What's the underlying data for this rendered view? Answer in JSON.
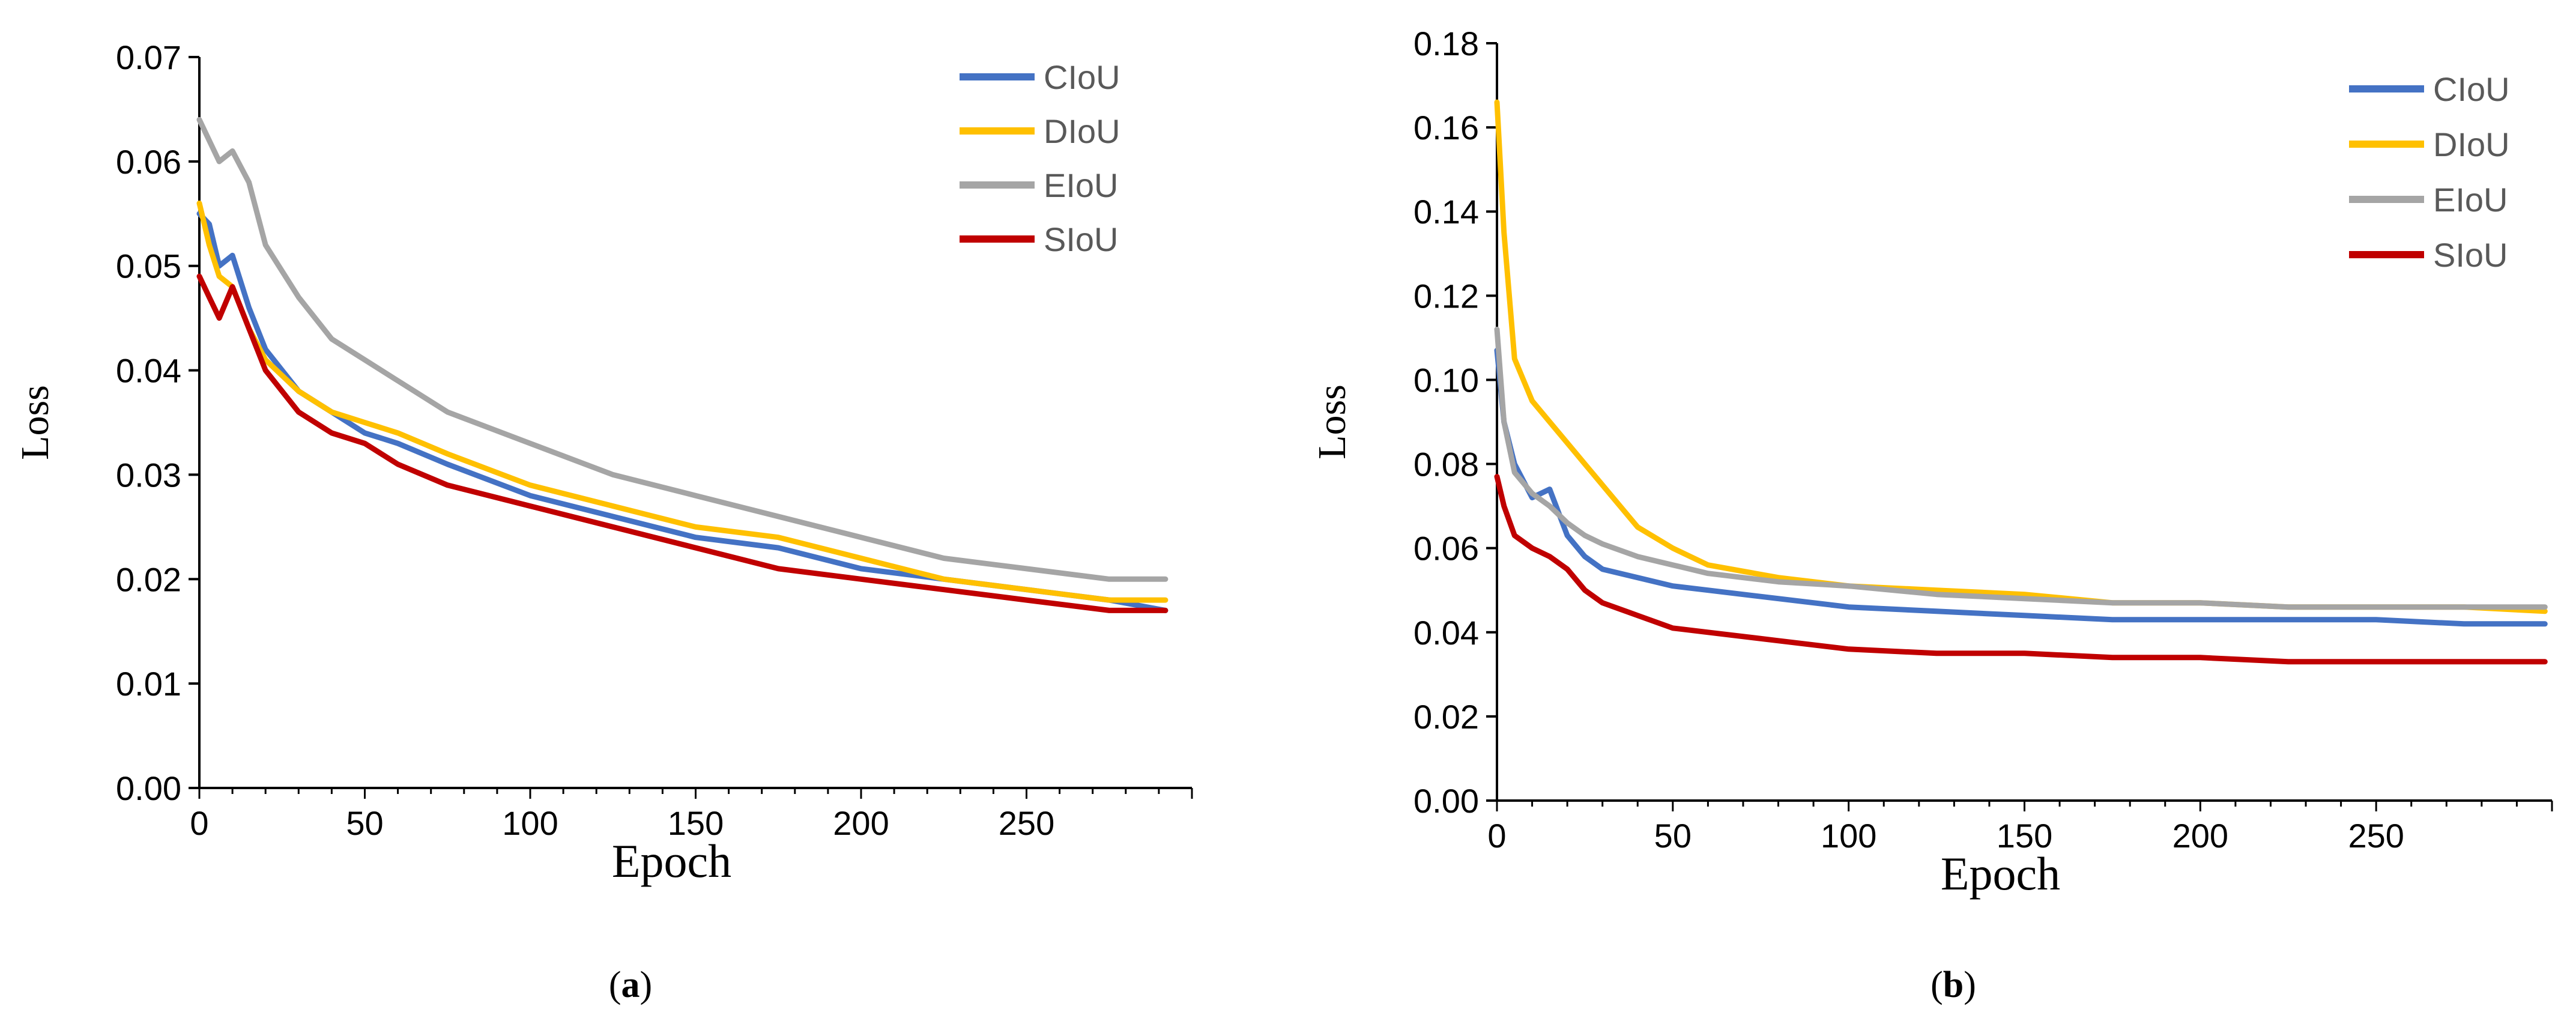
{
  "chart_data": [
    {
      "type": "line",
      "panel": "a",
      "caption": "a",
      "xlabel": "Epoch",
      "ylabel": "Loss",
      "xlim": [
        0,
        300
      ],
      "ylim": [
        0,
        0.07
      ],
      "xticks": [
        0,
        50,
        100,
        150,
        200,
        250
      ],
      "xtick_labels": [
        "0",
        "50",
        "100",
        "150",
        "200",
        "250"
      ],
      "yticks": [
        0,
        0.01,
        0.02,
        0.03,
        0.04,
        0.05,
        0.06,
        0.07
      ],
      "ytick_labels": [
        "0.00",
        "0.01",
        "0.02",
        "0.03",
        "0.04",
        "0.05",
        "0.06",
        "0.07"
      ],
      "legend_position": "top-right",
      "x": [
        0,
        3,
        6,
        10,
        15,
        20,
        30,
        40,
        50,
        60,
        75,
        100,
        125,
        150,
        175,
        200,
        225,
        250,
        275,
        292
      ],
      "series": [
        {
          "name": "CIoU",
          "color": "#4472C4",
          "values": [
            0.055,
            0.054,
            0.05,
            0.051,
            0.046,
            0.042,
            0.038,
            0.036,
            0.034,
            0.033,
            0.031,
            0.028,
            0.026,
            0.024,
            0.023,
            0.021,
            0.02,
            0.019,
            0.018,
            0.017
          ]
        },
        {
          "name": "DIoU",
          "color": "#FFC000",
          "values": [
            0.056,
            0.052,
            0.049,
            0.048,
            0.044,
            0.041,
            0.038,
            0.036,
            0.035,
            0.034,
            0.032,
            0.029,
            0.027,
            0.025,
            0.024,
            0.022,
            0.02,
            0.019,
            0.018,
            0.018
          ]
        },
        {
          "name": "EIoU",
          "color": "#A5A5A5",
          "values": [
            0.064,
            0.062,
            0.06,
            0.061,
            0.058,
            0.052,
            0.047,
            0.043,
            0.041,
            0.039,
            0.036,
            0.033,
            0.03,
            0.028,
            0.026,
            0.024,
            0.022,
            0.021,
            0.02,
            0.02
          ]
        },
        {
          "name": "SIoU",
          "color": "#C00000",
          "values": [
            0.049,
            0.047,
            0.045,
            0.048,
            0.044,
            0.04,
            0.036,
            0.034,
            0.033,
            0.031,
            0.029,
            0.027,
            0.025,
            0.023,
            0.021,
            0.02,
            0.019,
            0.018,
            0.017,
            0.017
          ]
        }
      ]
    },
    {
      "type": "line",
      "panel": "b",
      "caption": "b",
      "xlabel": "Epoch",
      "ylabel": "Loss",
      "xlim": [
        0,
        300
      ],
      "ylim": [
        0,
        0.18
      ],
      "xticks": [
        0,
        50,
        100,
        150,
        200,
        250
      ],
      "xtick_labels": [
        "0",
        "50",
        "100",
        "150",
        "200",
        "250"
      ],
      "yticks": [
        0,
        0.02,
        0.04,
        0.06,
        0.08,
        0.1,
        0.12,
        0.14,
        0.16,
        0.18
      ],
      "ytick_labels": [
        "0.00",
        "0.02",
        "0.04",
        "0.06",
        "0.08",
        "0.10",
        "0.12",
        "0.14",
        "0.16",
        "0.18"
      ],
      "legend_position": "top-right",
      "x": [
        0,
        2,
        5,
        10,
        15,
        20,
        25,
        30,
        40,
        50,
        60,
        80,
        100,
        125,
        150,
        175,
        200,
        225,
        250,
        275,
        298
      ],
      "series": [
        {
          "name": "CIoU",
          "color": "#4472C4",
          "values": [
            0.107,
            0.09,
            0.08,
            0.072,
            0.074,
            0.063,
            0.058,
            0.055,
            0.053,
            0.051,
            0.05,
            0.048,
            0.046,
            0.045,
            0.044,
            0.043,
            0.043,
            0.043,
            0.043,
            0.042,
            0.042
          ]
        },
        {
          "name": "DIoU",
          "color": "#FFC000",
          "values": [
            0.166,
            0.135,
            0.105,
            0.095,
            0.09,
            0.085,
            0.08,
            0.075,
            0.065,
            0.06,
            0.056,
            0.053,
            0.051,
            0.05,
            0.049,
            0.047,
            0.047,
            0.046,
            0.046,
            0.046,
            0.045
          ]
        },
        {
          "name": "EIoU",
          "color": "#A5A5A5",
          "values": [
            0.112,
            0.09,
            0.078,
            0.073,
            0.07,
            0.066,
            0.063,
            0.061,
            0.058,
            0.056,
            0.054,
            0.052,
            0.051,
            0.049,
            0.048,
            0.047,
            0.047,
            0.046,
            0.046,
            0.046,
            0.046
          ]
        },
        {
          "name": "SIoU",
          "color": "#C00000",
          "values": [
            0.077,
            0.07,
            0.063,
            0.06,
            0.058,
            0.055,
            0.05,
            0.047,
            0.044,
            0.041,
            0.04,
            0.038,
            0.036,
            0.035,
            0.035,
            0.034,
            0.034,
            0.033,
            0.033,
            0.033,
            0.033
          ]
        }
      ]
    }
  ]
}
